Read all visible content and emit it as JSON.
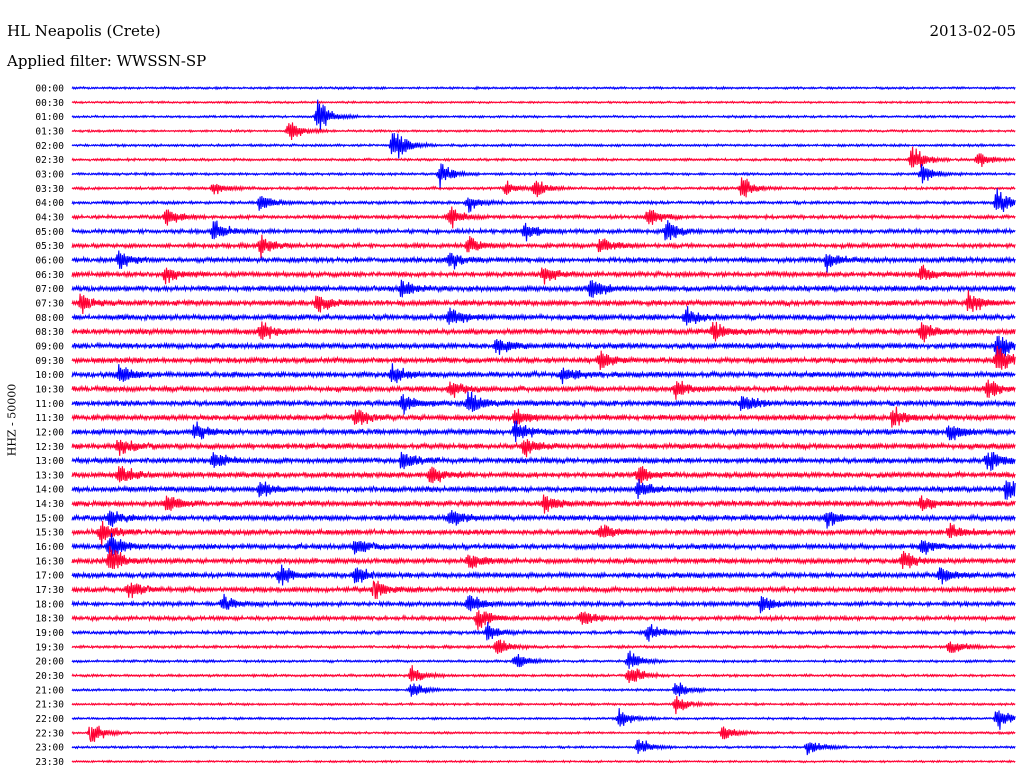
{
  "header": {
    "station": "HL Neapolis (Crete)",
    "date": "2013-02-05",
    "filter_text": "Applied filter: WWSSN-SP"
  },
  "chart_data": {
    "type": "helicorder",
    "title": "HL Neapolis (Crete)",
    "date": "2013-02-05",
    "filter": "WWSSN-SP",
    "channel_label": "HHZ - 50000",
    "row_interval_minutes": 30,
    "colors": [
      "#0000ff",
      "#ff0033"
    ],
    "rows": [
      {
        "time": "00:00",
        "activity": 0.8,
        "events": []
      },
      {
        "time": "00:30",
        "activity": 0.7,
        "events": []
      },
      {
        "time": "01:00",
        "activity": 0.8,
        "events": [
          {
            "at": 0.26,
            "amp": 3.5
          }
        ]
      },
      {
        "time": "01:30",
        "activity": 0.8,
        "events": [
          {
            "at": 0.23,
            "amp": 2.5
          }
        ]
      },
      {
        "time": "02:00",
        "activity": 0.9,
        "events": [
          {
            "at": 0.34,
            "amp": 4
          }
        ]
      },
      {
        "time": "02:30",
        "activity": 0.9,
        "events": [
          {
            "at": 0.89,
            "amp": 3
          },
          {
            "at": 0.96,
            "amp": 1.6
          }
        ]
      },
      {
        "time": "03:00",
        "activity": 0.9,
        "events": [
          {
            "at": 0.39,
            "amp": 2.5
          },
          {
            "at": 0.9,
            "amp": 2
          }
        ]
      },
      {
        "time": "03:30",
        "activity": 1.0,
        "events": [
          {
            "at": 0.15,
            "amp": 1.5
          },
          {
            "at": 0.46,
            "amp": 1.5
          },
          {
            "at": 0.49,
            "amp": 2
          },
          {
            "at": 0.71,
            "amp": 2.5
          }
        ]
      },
      {
        "time": "04:00",
        "activity": 1.1,
        "events": [
          {
            "at": 0.2,
            "amp": 2
          },
          {
            "at": 0.42,
            "amp": 1.8
          },
          {
            "at": 0.98,
            "amp": 3
          }
        ]
      },
      {
        "time": "04:30",
        "activity": 1.3,
        "events": [
          {
            "at": 0.1,
            "amp": 2
          },
          {
            "at": 0.4,
            "amp": 2.5
          },
          {
            "at": 0.61,
            "amp": 2
          }
        ]
      },
      {
        "time": "05:00",
        "activity": 1.5,
        "events": [
          {
            "at": 0.15,
            "amp": 2.5
          },
          {
            "at": 0.48,
            "amp": 2
          },
          {
            "at": 0.63,
            "amp": 2.5
          }
        ]
      },
      {
        "time": "05:30",
        "activity": 1.6,
        "events": [
          {
            "at": 0.2,
            "amp": 2
          },
          {
            "at": 0.42,
            "amp": 2
          },
          {
            "at": 0.56,
            "amp": 2
          }
        ]
      },
      {
        "time": "06:00",
        "activity": 1.8,
        "events": [
          {
            "at": 0.05,
            "amp": 2
          },
          {
            "at": 0.4,
            "amp": 2
          },
          {
            "at": 0.8,
            "amp": 2
          }
        ]
      },
      {
        "time": "06:30",
        "activity": 1.8,
        "events": [
          {
            "at": 0.1,
            "amp": 2
          },
          {
            "at": 0.5,
            "amp": 2
          },
          {
            "at": 0.9,
            "amp": 2
          }
        ]
      },
      {
        "time": "07:00",
        "activity": 2.0,
        "events": [
          {
            "at": 0.35,
            "amp": 2
          },
          {
            "at": 0.55,
            "amp": 2.5
          }
        ]
      },
      {
        "time": "07:30",
        "activity": 2.0,
        "events": [
          {
            "at": 0.01,
            "amp": 2
          },
          {
            "at": 0.26,
            "amp": 2
          },
          {
            "at": 0.95,
            "amp": 2.5
          }
        ]
      },
      {
        "time": "08:00",
        "activity": 2.0,
        "events": [
          {
            "at": 0.4,
            "amp": 2.5
          },
          {
            "at": 0.65,
            "amp": 2
          }
        ]
      },
      {
        "time": "08:30",
        "activity": 2.0,
        "events": [
          {
            "at": 0.2,
            "amp": 2
          },
          {
            "at": 0.68,
            "amp": 2
          },
          {
            "at": 0.9,
            "amp": 2
          }
        ]
      },
      {
        "time": "09:00",
        "activity": 2.0,
        "events": [
          {
            "at": 0.45,
            "amp": 2
          },
          {
            "at": 0.98,
            "amp": 3
          }
        ]
      },
      {
        "time": "09:30",
        "activity": 2.0,
        "events": [
          {
            "at": 0.56,
            "amp": 2
          },
          {
            "at": 0.98,
            "amp": 3
          }
        ]
      },
      {
        "time": "10:00",
        "activity": 2.0,
        "events": [
          {
            "at": 0.05,
            "amp": 2
          },
          {
            "at": 0.34,
            "amp": 2
          },
          {
            "at": 0.52,
            "amp": 2
          }
        ]
      },
      {
        "time": "10:30",
        "activity": 2.0,
        "events": [
          {
            "at": 0.4,
            "amp": 2
          },
          {
            "at": 0.64,
            "amp": 2
          },
          {
            "at": 0.97,
            "amp": 2.5
          }
        ]
      },
      {
        "time": "11:00",
        "activity": 2.0,
        "events": [
          {
            "at": 0.35,
            "amp": 2
          },
          {
            "at": 0.42,
            "amp": 2.5
          },
          {
            "at": 0.71,
            "amp": 2
          }
        ]
      },
      {
        "time": "11:30",
        "activity": 2.0,
        "events": [
          {
            "at": 0.3,
            "amp": 2
          },
          {
            "at": 0.47,
            "amp": 2
          },
          {
            "at": 0.87,
            "amp": 2
          }
        ]
      },
      {
        "time": "12:00",
        "activity": 2.0,
        "events": [
          {
            "at": 0.13,
            "amp": 2
          },
          {
            "at": 0.47,
            "amp": 2.5
          },
          {
            "at": 0.93,
            "amp": 2
          }
        ]
      },
      {
        "time": "12:30",
        "activity": 2.0,
        "events": [
          {
            "at": 0.05,
            "amp": 2
          },
          {
            "at": 0.48,
            "amp": 2
          }
        ]
      },
      {
        "time": "13:00",
        "activity": 2.0,
        "events": [
          {
            "at": 0.15,
            "amp": 2
          },
          {
            "at": 0.35,
            "amp": 2
          },
          {
            "at": 0.97,
            "amp": 2.5
          }
        ]
      },
      {
        "time": "13:30",
        "activity": 2.0,
        "events": [
          {
            "at": 0.05,
            "amp": 2
          },
          {
            "at": 0.38,
            "amp": 2
          },
          {
            "at": 0.6,
            "amp": 2
          }
        ]
      },
      {
        "time": "14:00",
        "activity": 2.0,
        "events": [
          {
            "at": 0.2,
            "amp": 2
          },
          {
            "at": 0.6,
            "amp": 2
          },
          {
            "at": 0.99,
            "amp": 2.5
          }
        ]
      },
      {
        "time": "14:30",
        "activity": 2.0,
        "events": [
          {
            "at": 0.1,
            "amp": 2
          },
          {
            "at": 0.5,
            "amp": 2
          },
          {
            "at": 0.9,
            "amp": 2
          }
        ]
      },
      {
        "time": "15:00",
        "activity": 2.0,
        "events": [
          {
            "at": 0.04,
            "amp": 2
          },
          {
            "at": 0.4,
            "amp": 2
          },
          {
            "at": 0.8,
            "amp": 2
          }
        ]
      },
      {
        "time": "15:30",
        "activity": 1.9,
        "events": [
          {
            "at": 0.03,
            "amp": 2.5
          },
          {
            "at": 0.56,
            "amp": 2
          },
          {
            "at": 0.93,
            "amp": 2
          }
        ]
      },
      {
        "time": "16:00",
        "activity": 1.9,
        "events": [
          {
            "at": 0.04,
            "amp": 3
          },
          {
            "at": 0.3,
            "amp": 2
          },
          {
            "at": 0.9,
            "amp": 2
          }
        ]
      },
      {
        "time": "16:30",
        "activity": 1.9,
        "events": [
          {
            "at": 0.04,
            "amp": 3
          },
          {
            "at": 0.42,
            "amp": 2
          },
          {
            "at": 0.88,
            "amp": 2
          }
        ]
      },
      {
        "time": "17:00",
        "activity": 1.9,
        "events": [
          {
            "at": 0.22,
            "amp": 2
          },
          {
            "at": 0.3,
            "amp": 2
          },
          {
            "at": 0.92,
            "amp": 2
          }
        ]
      },
      {
        "time": "17:30",
        "activity": 1.9,
        "events": [
          {
            "at": 0.06,
            "amp": 2
          },
          {
            "at": 0.32,
            "amp": 2
          }
        ]
      },
      {
        "time": "18:00",
        "activity": 1.6,
        "events": [
          {
            "at": 0.16,
            "amp": 2
          },
          {
            "at": 0.42,
            "amp": 2
          },
          {
            "at": 0.73,
            "amp": 2
          }
        ]
      },
      {
        "time": "18:30",
        "activity": 1.5,
        "events": [
          {
            "at": 0.43,
            "amp": 2.5
          },
          {
            "at": 0.54,
            "amp": 2
          }
        ]
      },
      {
        "time": "19:00",
        "activity": 1.2,
        "events": [
          {
            "at": 0.44,
            "amp": 2
          },
          {
            "at": 0.61,
            "amp": 2
          }
        ]
      },
      {
        "time": "19:30",
        "activity": 1.0,
        "events": [
          {
            "at": 0.45,
            "amp": 2
          },
          {
            "at": 0.93,
            "amp": 2
          }
        ]
      },
      {
        "time": "20:00",
        "activity": 0.9,
        "events": [
          {
            "at": 0.47,
            "amp": 2
          },
          {
            "at": 0.59,
            "amp": 2
          }
        ]
      },
      {
        "time": "20:30",
        "activity": 0.9,
        "events": [
          {
            "at": 0.36,
            "amp": 2
          },
          {
            "at": 0.59,
            "amp": 2.5
          }
        ]
      },
      {
        "time": "21:00",
        "activity": 0.8,
        "events": [
          {
            "at": 0.36,
            "amp": 2
          },
          {
            "at": 0.64,
            "amp": 2
          }
        ]
      },
      {
        "time": "21:30",
        "activity": 0.8,
        "events": [
          {
            "at": 0.64,
            "amp": 2
          }
        ]
      },
      {
        "time": "22:00",
        "activity": 0.8,
        "events": [
          {
            "at": 0.58,
            "amp": 2
          },
          {
            "at": 0.98,
            "amp": 2.5
          }
        ]
      },
      {
        "time": "22:30",
        "activity": 0.8,
        "events": [
          {
            "at": 0.02,
            "amp": 2.5
          },
          {
            "at": 0.69,
            "amp": 2
          }
        ]
      },
      {
        "time": "23:00",
        "activity": 0.8,
        "events": [
          {
            "at": 0.6,
            "amp": 2
          },
          {
            "at": 0.78,
            "amp": 2
          }
        ]
      },
      {
        "time": "23:30",
        "activity": 0.7,
        "events": []
      }
    ]
  }
}
